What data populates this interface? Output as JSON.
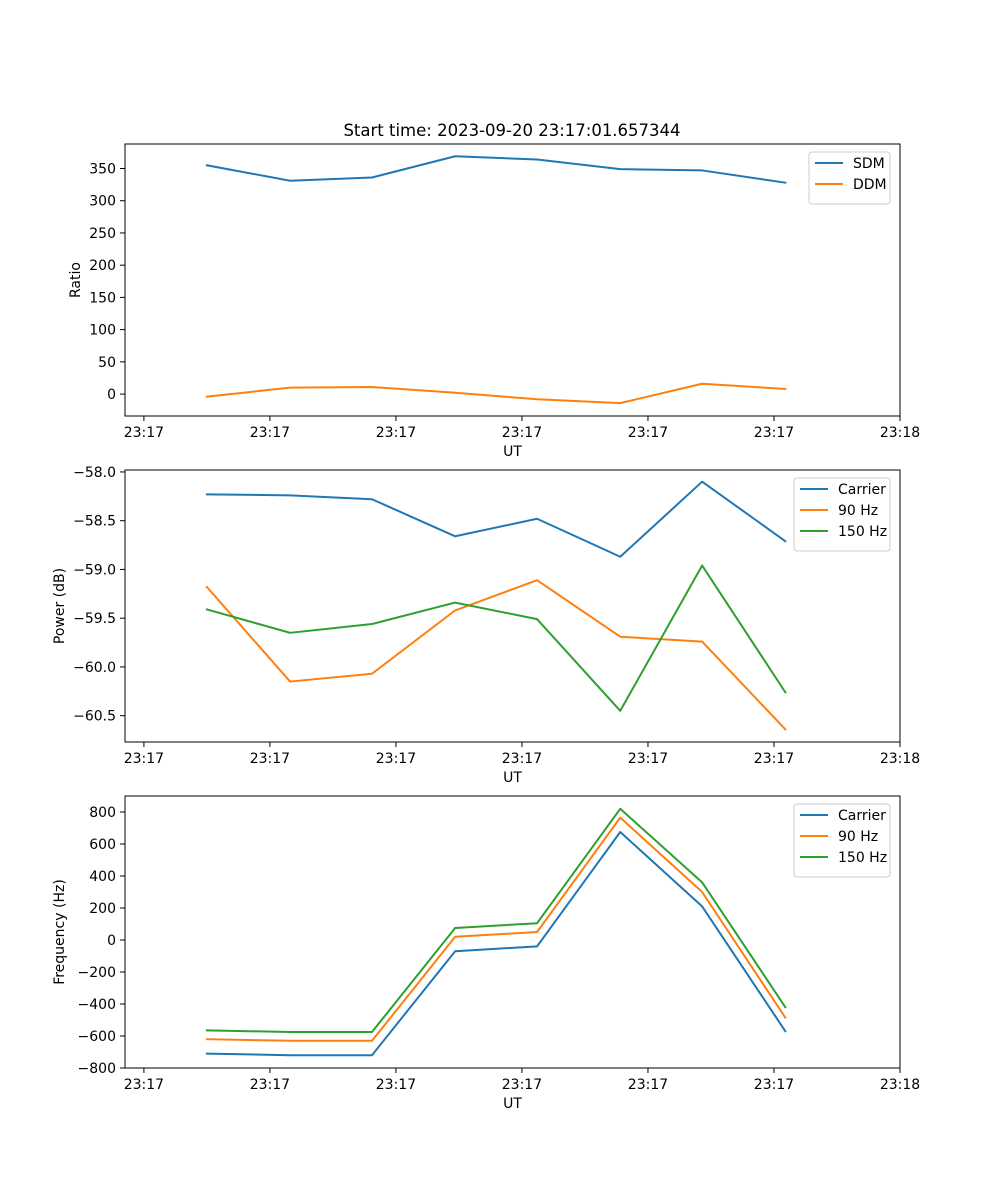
{
  "figure": {
    "title": "Start time: 2023-09-20 23:17:01.657344"
  },
  "chart_data": [
    {
      "type": "line",
      "xlabel": "UT",
      "ylabel": "Ratio",
      "xtick_labels": [
        "23:17",
        "23:17",
        "23:17",
        "23:17",
        "23:17",
        "23:17",
        "23:18"
      ],
      "ytick_values": [
        0,
        50,
        100,
        150,
        200,
        250,
        300,
        350
      ],
      "ytick_labels": [
        "0",
        "50",
        "100",
        "150",
        "200",
        "250",
        "300",
        "350"
      ],
      "ylim": [
        -34,
        388
      ],
      "x": [
        0.5,
        1.16,
        1.81,
        2.47,
        3.12,
        3.78,
        4.43,
        5.09
      ],
      "xlim": [
        -0.15,
        6.0
      ],
      "series": [
        {
          "name": "SDM",
          "color": "#1f77b4",
          "values": [
            355,
            331,
            336,
            369,
            364,
            349,
            347,
            328
          ]
        },
        {
          "name": "DDM",
          "color": "#ff7f0e",
          "values": [
            -4,
            10,
            11,
            2,
            -8,
            -14,
            16,
            8
          ]
        }
      ],
      "legend": "top-right"
    },
    {
      "type": "line",
      "xlabel": "UT",
      "ylabel": "Power (dB)",
      "xtick_labels": [
        "23:17",
        "23:17",
        "23:17",
        "23:17",
        "23:17",
        "23:17",
        "23:18"
      ],
      "ytick_values": [
        -58.0,
        -58.5,
        -59.0,
        -59.5,
        -60.0,
        -60.5
      ],
      "ytick_labels": [
        "−58.0",
        "−58.5",
        "−59.0",
        "−59.5",
        "−60.0",
        "−60.5"
      ],
      "ylim": [
        -60.77,
        -57.98
      ],
      "x": [
        0.5,
        1.16,
        1.81,
        2.47,
        3.12,
        3.78,
        4.43,
        5.09
      ],
      "xlim": [
        -0.15,
        6.0
      ],
      "series": [
        {
          "name": "Carrier",
          "color": "#1f77b4",
          "values": [
            -58.23,
            -58.24,
            -58.28,
            -58.66,
            -58.48,
            -58.87,
            -58.1,
            -58.71
          ]
        },
        {
          "name": "90 Hz",
          "color": "#ff7f0e",
          "values": [
            -59.18,
            -60.15,
            -60.07,
            -59.42,
            -59.11,
            -59.69,
            -59.74,
            -60.64
          ]
        },
        {
          "name": "150 Hz",
          "color": "#2ca02c",
          "values": [
            -59.41,
            -59.65,
            -59.56,
            -59.34,
            -59.51,
            -60.45,
            -58.96,
            -60.26
          ]
        }
      ],
      "legend": "top-right"
    },
    {
      "type": "line",
      "xlabel": "UT",
      "ylabel": "Frequency (Hz)",
      "xtick_labels": [
        "23:17",
        "23:17",
        "23:17",
        "23:17",
        "23:17",
        "23:17",
        "23:18"
      ],
      "ytick_values": [
        800,
        600,
        400,
        200,
        0,
        -200,
        -400,
        -600,
        -800
      ],
      "ytick_labels": [
        "800",
        "600",
        "400",
        "200",
        "0",
        "−200",
        "−400",
        "−600",
        "−800"
      ],
      "ylim": [
        -800,
        900
      ],
      "x": [
        0.5,
        1.16,
        1.81,
        2.47,
        3.12,
        3.78,
        4.43,
        5.09
      ],
      "xlim": [
        -0.15,
        6.0
      ],
      "series": [
        {
          "name": "Carrier",
          "color": "#1f77b4",
          "values": [
            -710,
            -720,
            -720,
            -70,
            -40,
            675,
            210,
            -570
          ]
        },
        {
          "name": "90 Hz",
          "color": "#ff7f0e",
          "values": [
            -620,
            -630,
            -630,
            20,
            50,
            765,
            300,
            -485
          ]
        },
        {
          "name": "150 Hz",
          "color": "#2ca02c",
          "values": [
            -565,
            -575,
            -575,
            75,
            105,
            820,
            360,
            -420
          ]
        }
      ],
      "legend": "top-right"
    }
  ]
}
